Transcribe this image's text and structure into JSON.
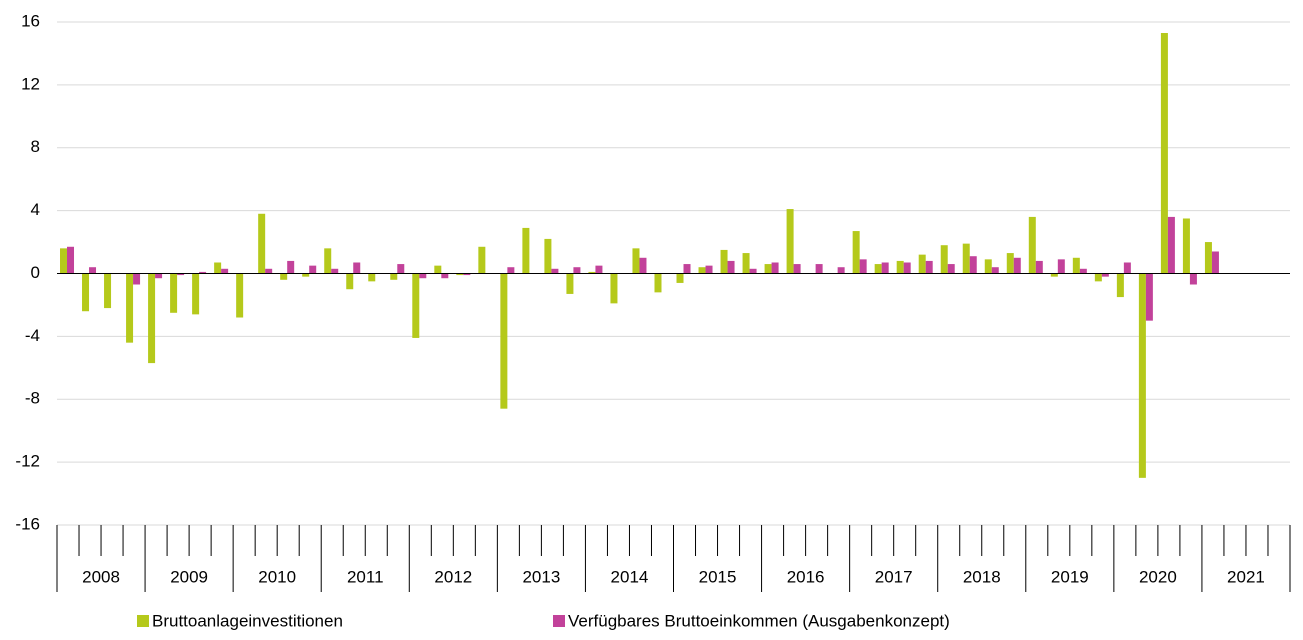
{
  "chart_data": {
    "type": "bar",
    "categories": [
      null,
      null,
      null,
      null,
      null,
      null,
      null,
      null,
      null,
      null,
      null,
      null,
      null,
      null,
      null,
      null,
      null,
      null,
      null,
      null,
      null,
      null,
      null,
      null,
      null,
      null,
      null,
      null,
      null,
      null,
      null,
      null,
      null,
      null,
      null,
      null,
      null,
      null,
      null,
      null,
      null,
      null,
      null,
      null,
      null,
      null,
      null,
      null,
      null,
      null,
      null,
      null,
      null,
      null,
      null,
      null
    ],
    "year_labels": [
      "2008",
      "2009",
      "2010",
      "2011",
      "2012",
      "2013",
      "2014",
      "2015",
      "2016",
      "2017",
      "2018",
      "2019",
      "2020",
      "2021"
    ],
    "series": [
      {
        "name": "Bruttoanlageinvestitionen",
        "color": "#b5c91b",
        "values": [
          1.6,
          -2.4,
          -2.2,
          -4.4,
          -5.7,
          -2.5,
          -2.6,
          0.7,
          -2.8,
          3.8,
          -0.4,
          -0.2,
          1.6,
          -1.0,
          -0.5,
          -0.4,
          -4.1,
          0.5,
          -0.1,
          1.7,
          -8.6,
          2.9,
          2.2,
          -1.3,
          0.1,
          -1.9,
          1.6,
          -1.2,
          -0.6,
          0.4,
          1.5,
          1.3,
          0.6,
          4.1,
          0,
          0,
          2.7,
          0.6,
          0.8,
          1.2,
          1.8,
          1.9,
          0.9,
          1.3,
          3.6,
          -0.2,
          1.0,
          -0.5,
          -1.5,
          -13.0,
          15.3,
          3.5,
          2.0,
          null,
          null,
          null
        ]
      },
      {
        "name": "Verfügbares Bruttoeinkommen (Ausgabenkonzept)",
        "color": "#c2429a",
        "values": [
          1.7,
          0.4,
          0,
          -0.7,
          -0.3,
          -0.1,
          0.1,
          0.3,
          0,
          0.3,
          0.8,
          0.5,
          0.3,
          0.7,
          0,
          0.6,
          -0.3,
          -0.3,
          -0.1,
          0,
          0.4,
          0,
          0.3,
          0.4,
          0.5,
          0,
          1.0,
          0,
          0.6,
          0.5,
          0.8,
          0.3,
          0.7,
          0.6,
          0.6,
          0.4,
          0.9,
          0.7,
          0.7,
          0.8,
          0.6,
          1.1,
          0.4,
          1.0,
          0.8,
          0.9,
          0.3,
          -0.2,
          0.7,
          -3.0,
          3.6,
          -0.7,
          1.4,
          null,
          null,
          null
        ]
      }
    ],
    "ylim": [
      -16,
      16
    ],
    "yticks": [
      -16,
      -12,
      -8,
      -4,
      0,
      4,
      8,
      12,
      16
    ],
    "grid": true,
    "legend": "bottom"
  }
}
